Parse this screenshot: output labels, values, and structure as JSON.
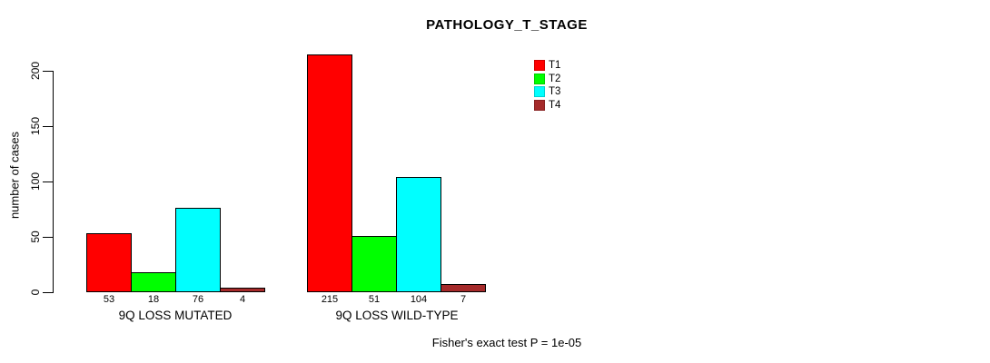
{
  "figure": {
    "title": "PATHOLOGY_T_STAGE",
    "y_axis_label": "number of cases",
    "footnote": "Fisher's exact test P = 1e-05"
  },
  "chart_data": {
    "type": "bar",
    "title": "PATHOLOGY_T_STAGE",
    "xlabel": "",
    "ylabel": "number of cases",
    "ylim": [
      0,
      200
    ],
    "yticks": [
      0,
      50,
      100,
      150,
      200
    ],
    "grid": false,
    "legend_position": "top-right",
    "bar_value_labels_shown": true,
    "categories": [
      "9Q LOSS MUTATED",
      "9Q LOSS WILD-TYPE"
    ],
    "series": [
      {
        "name": "T1",
        "color": "#FF0000",
        "values": [
          53,
          215
        ]
      },
      {
        "name": "T2",
        "color": "#00FF00",
        "values": [
          18,
          51
        ]
      },
      {
        "name": "T3",
        "color": "#00FFFF",
        "values": [
          76,
          104
        ]
      },
      {
        "name": "T4",
        "color": "#A52A2A",
        "values": [
          4,
          7
        ]
      }
    ],
    "annotation": "Fisher's exact test P = 1e-05"
  }
}
